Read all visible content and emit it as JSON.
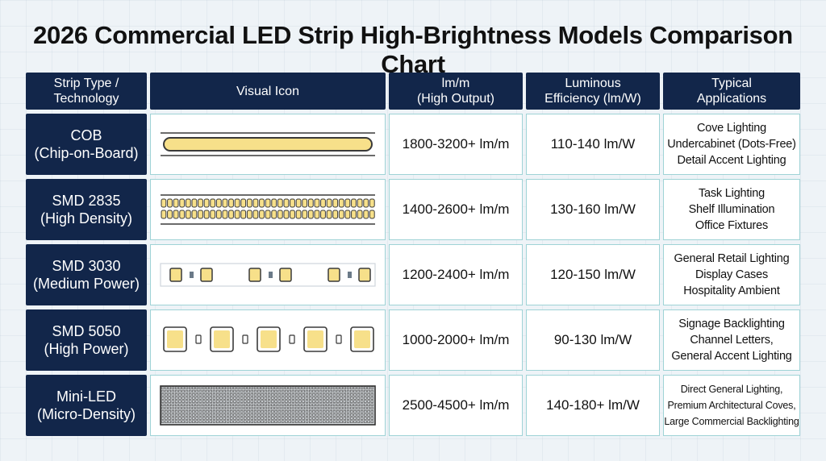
{
  "title": "2026 Commercial LED Strip High-Brightness Models Comparison Chart",
  "chart_data": {
    "type": "table",
    "columns": [
      {
        "line1": "Strip Type /",
        "line2": "Technology"
      },
      {
        "line1": "Visual Icon",
        "line2": ""
      },
      {
        "line1": "lm/m",
        "line2": "(High Output)"
      },
      {
        "line1": "Luminous",
        "line2": "Efficiency (lm/W)"
      },
      {
        "line1": "Typical",
        "line2": "Applications"
      }
    ],
    "rows": [
      {
        "type": "COB",
        "subtype": "(Chip-on-Board)",
        "icon": "cob-strip-icon",
        "lumens_per_meter": "1800-3200+ lm/m",
        "efficiency": "110-140 lm/W",
        "applications": [
          "Cove Lighting",
          "Undercabinet (Dots-Free)",
          "Detail Accent Lighting"
        ]
      },
      {
        "type": "SMD 2835",
        "subtype": "(High Density)",
        "icon": "smd2835-strip-icon",
        "lumens_per_meter": "1400-2600+ lm/m",
        "efficiency": "130-160 lm/W",
        "applications": [
          "Task Lighting",
          "Shelf Illumination",
          "Office Fixtures"
        ]
      },
      {
        "type": "SMD 3030",
        "subtype": "(Medium Power)",
        "icon": "smd3030-strip-icon",
        "lumens_per_meter": "1200-2400+ lm/m",
        "efficiency": "120-150 lm/W",
        "applications": [
          "General Retail Lighting",
          "Display Cases",
          "Hospitality Ambient"
        ]
      },
      {
        "type": "SMD 5050",
        "subtype": "(High Power)",
        "icon": "smd5050-strip-icon",
        "lumens_per_meter": "1000-2000+ lm/m",
        "efficiency": "90-130 lm/W",
        "applications": [
          "Signage Backlighting",
          "Channel Letters,",
          "General Accent Lighting"
        ]
      },
      {
        "type": "Mini-LED",
        "subtype": "(Micro-Density)",
        "icon": "miniled-strip-icon",
        "lumens_per_meter": "2500-4500+ lm/m",
        "efficiency": "140-180+ lm/W",
        "applications": [
          "Direct General Lighting,",
          "Premium Architectural Coves,",
          "Large Commercial Backlighting"
        ]
      }
    ]
  },
  "colors": {
    "header_bg": "#12264a",
    "cell_border": "#9fd3d6",
    "led_yellow": "#f7e08a",
    "led_outline": "#3a3a3a"
  }
}
